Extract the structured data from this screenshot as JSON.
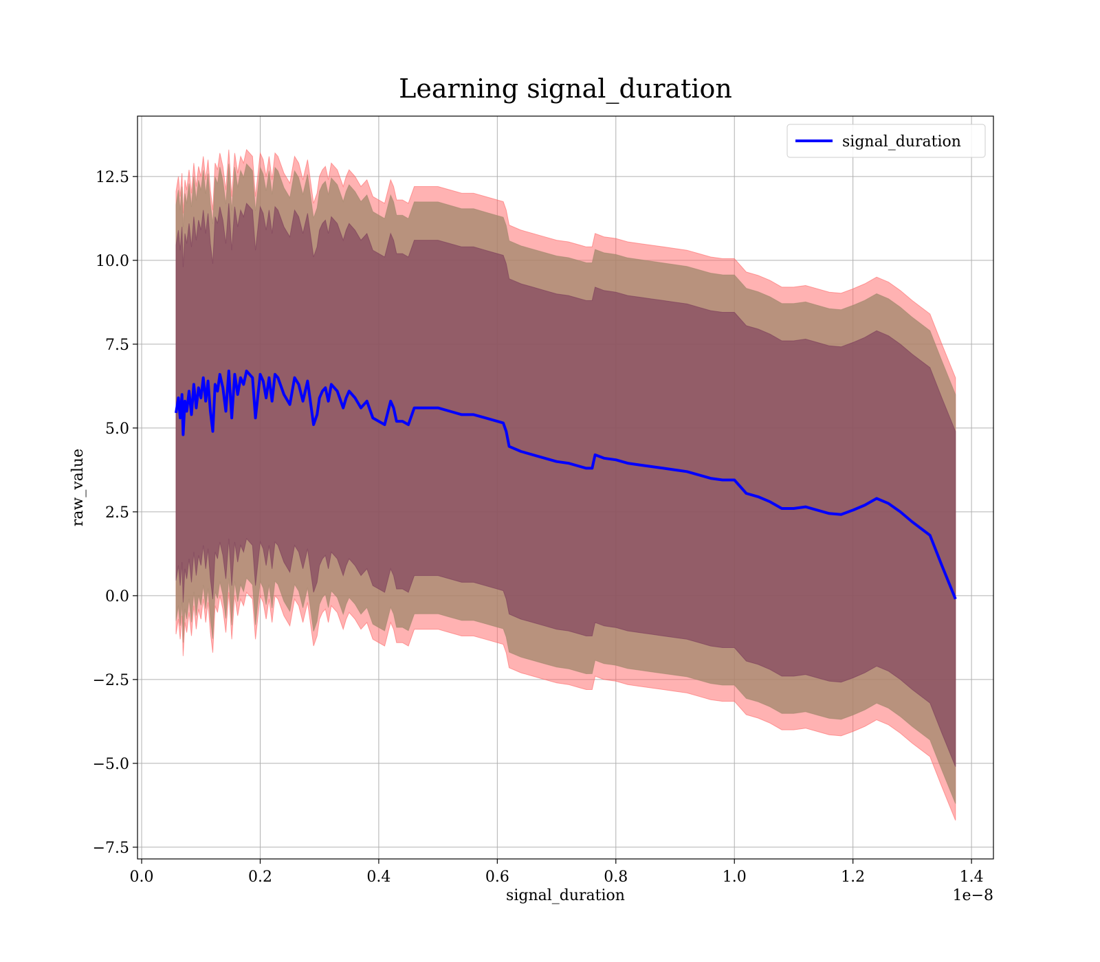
{
  "chart_data": {
    "type": "line",
    "title": "Learning signal_duration",
    "xlabel": "signal_duration",
    "ylabel": "raw_value",
    "x_offset_text": "1e−8",
    "xlim": [
      -0.007,
      1.437
    ],
    "ylim": [
      -7.85,
      14.3
    ],
    "x_ticks": [
      0.0,
      0.2,
      0.4,
      0.6,
      0.8,
      1.0,
      1.2,
      1.4
    ],
    "x_tick_labels": [
      "0.0",
      "0.2",
      "0.4",
      "0.6",
      "0.8",
      "1.0",
      "1.2",
      "1.4"
    ],
    "y_ticks": [
      -7.5,
      -5.0,
      -2.5,
      0.0,
      2.5,
      5.0,
      7.5,
      10.0,
      12.5
    ],
    "y_tick_labels": [
      "−7.5",
      "−5.0",
      "−2.5",
      "0.0",
      "2.5",
      "5.0",
      "7.5",
      "10.0",
      "12.5"
    ],
    "grid": true,
    "legend": {
      "placement": "top-right",
      "entries": [
        "signal_duration"
      ]
    },
    "colors": {
      "line": "#0000ff",
      "band_outer": "#ff6666",
      "band_middle": "#a0876b",
      "band_inner": "#7a3a5a"
    },
    "series": [
      {
        "name": "signal_duration",
        "x": [
          0.058,
          0.062,
          0.065,
          0.068,
          0.07,
          0.073,
          0.076,
          0.08,
          0.084,
          0.088,
          0.092,
          0.096,
          0.1,
          0.104,
          0.108,
          0.112,
          0.116,
          0.12,
          0.124,
          0.128,
          0.132,
          0.137,
          0.142,
          0.147,
          0.152,
          0.157,
          0.162,
          0.167,
          0.172,
          0.177,
          0.182,
          0.187,
          0.192,
          0.2,
          0.205,
          0.21,
          0.215,
          0.22,
          0.225,
          0.23,
          0.24,
          0.25,
          0.258,
          0.265,
          0.272,
          0.28,
          0.29,
          0.296,
          0.3,
          0.305,
          0.31,
          0.315,
          0.32,
          0.33,
          0.34,
          0.345,
          0.35,
          0.36,
          0.37,
          0.38,
          0.39,
          0.4,
          0.41,
          0.42,
          0.425,
          0.43,
          0.44,
          0.45,
          0.46,
          0.47,
          0.48,
          0.5,
          0.52,
          0.54,
          0.56,
          0.58,
          0.6,
          0.61,
          0.615,
          0.62,
          0.64,
          0.66,
          0.68,
          0.7,
          0.72,
          0.74,
          0.75,
          0.76,
          0.765,
          0.78,
          0.8,
          0.82,
          0.84,
          0.86,
          0.88,
          0.9,
          0.92,
          0.94,
          0.96,
          0.98,
          1.0,
          1.02,
          1.04,
          1.06,
          1.08,
          1.1,
          1.12,
          1.14,
          1.16,
          1.18,
          1.2,
          1.22,
          1.24,
          1.26,
          1.28,
          1.3,
          1.33,
          1.35,
          1.373
        ],
        "y": [
          5.45,
          5.9,
          5.3,
          6.0,
          4.8,
          5.8,
          5.5,
          6.1,
          5.4,
          6.3,
          5.6,
          6.2,
          5.9,
          6.5,
          5.8,
          6.4,
          5.5,
          4.9,
          6.3,
          6.1,
          6.6,
          6.2,
          5.5,
          6.7,
          5.3,
          6.6,
          6.0,
          6.5,
          6.3,
          6.7,
          6.6,
          6.5,
          5.3,
          6.6,
          6.4,
          5.9,
          6.5,
          5.8,
          6.6,
          6.5,
          6.0,
          5.7,
          6.5,
          6.3,
          5.8,
          6.4,
          5.1,
          5.4,
          5.9,
          6.1,
          6.2,
          5.8,
          6.3,
          6.1,
          5.6,
          5.9,
          6.1,
          5.9,
          5.6,
          5.8,
          5.3,
          5.2,
          5.1,
          5.8,
          5.6,
          5.2,
          5.2,
          5.1,
          5.6,
          5.6,
          5.6,
          5.6,
          5.5,
          5.4,
          5.4,
          5.3,
          5.2,
          5.15,
          4.9,
          4.45,
          4.3,
          4.2,
          4.1,
          4.0,
          3.95,
          3.85,
          3.8,
          3.8,
          4.2,
          4.1,
          4.05,
          3.95,
          3.9,
          3.85,
          3.8,
          3.75,
          3.7,
          3.6,
          3.5,
          3.45,
          3.45,
          3.05,
          2.95,
          2.8,
          2.6,
          2.6,
          2.65,
          2.55,
          2.45,
          2.42,
          2.55,
          2.7,
          2.9,
          2.75,
          2.5,
          2.2,
          1.8,
          0.9,
          -0.1
        ]
      }
    ],
    "bands": [
      {
        "label": "outer",
        "half_width_start": 6.6,
        "half_width_end": 6.6
      },
      {
        "label": "middle",
        "half_width_start": 6.2,
        "half_width_end": 6.1
      },
      {
        "label": "inner",
        "half_width_start": 5.0,
        "half_width_end": 5.0
      }
    ]
  }
}
